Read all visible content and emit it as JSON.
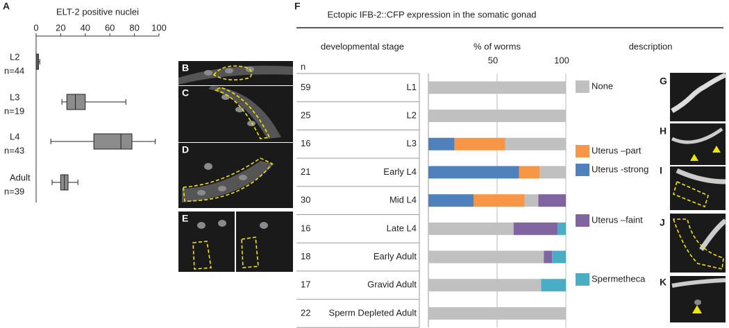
{
  "panel_labels": {
    "a": "A",
    "b": "B",
    "c": "C",
    "d": "D",
    "e": "E",
    "f": "F",
    "g": "G",
    "h": "H",
    "i": "I",
    "j": "J",
    "k": "K"
  },
  "chart_data": [
    {
      "type": "box",
      "x_label": "ELT-2 positive nuclei",
      "categories": [
        "L2",
        "L3",
        "L4",
        "Adult"
      ],
      "n_labels": [
        "n=44",
        "n=19",
        "n=43",
        "n=39"
      ],
      "boxes": [
        {
          "min": 0,
          "q1": 0,
          "median": 1,
          "q3": 2,
          "max": 3
        },
        {
          "min": 21,
          "q1": 25,
          "median": 32,
          "q3": 40,
          "max": 73
        },
        {
          "min": 12,
          "q1": 47,
          "median": 69,
          "q3": 78,
          "max": 97
        },
        {
          "min": 13,
          "q1": 20,
          "median": 23,
          "q3": 26,
          "max": 34
        }
      ],
      "color": "#8c8c8c",
      "xlim": [
        0,
        100
      ],
      "xticks": [
        0,
        20,
        40,
        60,
        80,
        100
      ]
    },
    {
      "type": "stacked-bar-horizontal",
      "title": "Ectopic IFB-2::CFP expression in the somatic gonad",
      "category_header": "developmental stage",
      "x_label": "% of worms",
      "legend_header": "description",
      "n_header": "n",
      "categories": [
        "L1",
        "L2",
        "L3",
        "Early L4",
        "Mid L4",
        "Late L4",
        "Early Adult",
        "Gravid Adult",
        "Sperm  Depleted Adult"
      ],
      "n_values": [
        59,
        25,
        16,
        21,
        30,
        16,
        18,
        17,
        22
      ],
      "series": [
        {
          "name": "None",
          "color": "#c0c0c0",
          "values": [
            100,
            100,
            44,
            19,
            10,
            62,
            84,
            82,
            100
          ]
        },
        {
          "name": "Uterus –part",
          "color": "#f79646",
          "values": [
            0,
            0,
            37,
            15,
            37,
            0,
            0,
            0,
            0
          ]
        },
        {
          "name": "Uterus -strong",
          "color": "#4f81bd",
          "values": [
            0,
            0,
            19,
            66,
            33,
            0,
            0,
            0,
            0
          ]
        },
        {
          "name": "Uterus –faint",
          "color": "#8064a2",
          "values": [
            0,
            0,
            0,
            0,
            20,
            32,
            6,
            0,
            0
          ]
        },
        {
          "name": "Spermetheca",
          "color": "#4bacc6",
          "values": [
            0,
            0,
            0,
            0,
            0,
            6,
            10,
            18,
            0
          ]
        }
      ],
      "stack_order": [
        2,
        1,
        0,
        3,
        4
      ],
      "xlim": [
        0,
        100
      ],
      "xticks": [
        50,
        100
      ],
      "grid": true
    }
  ]
}
